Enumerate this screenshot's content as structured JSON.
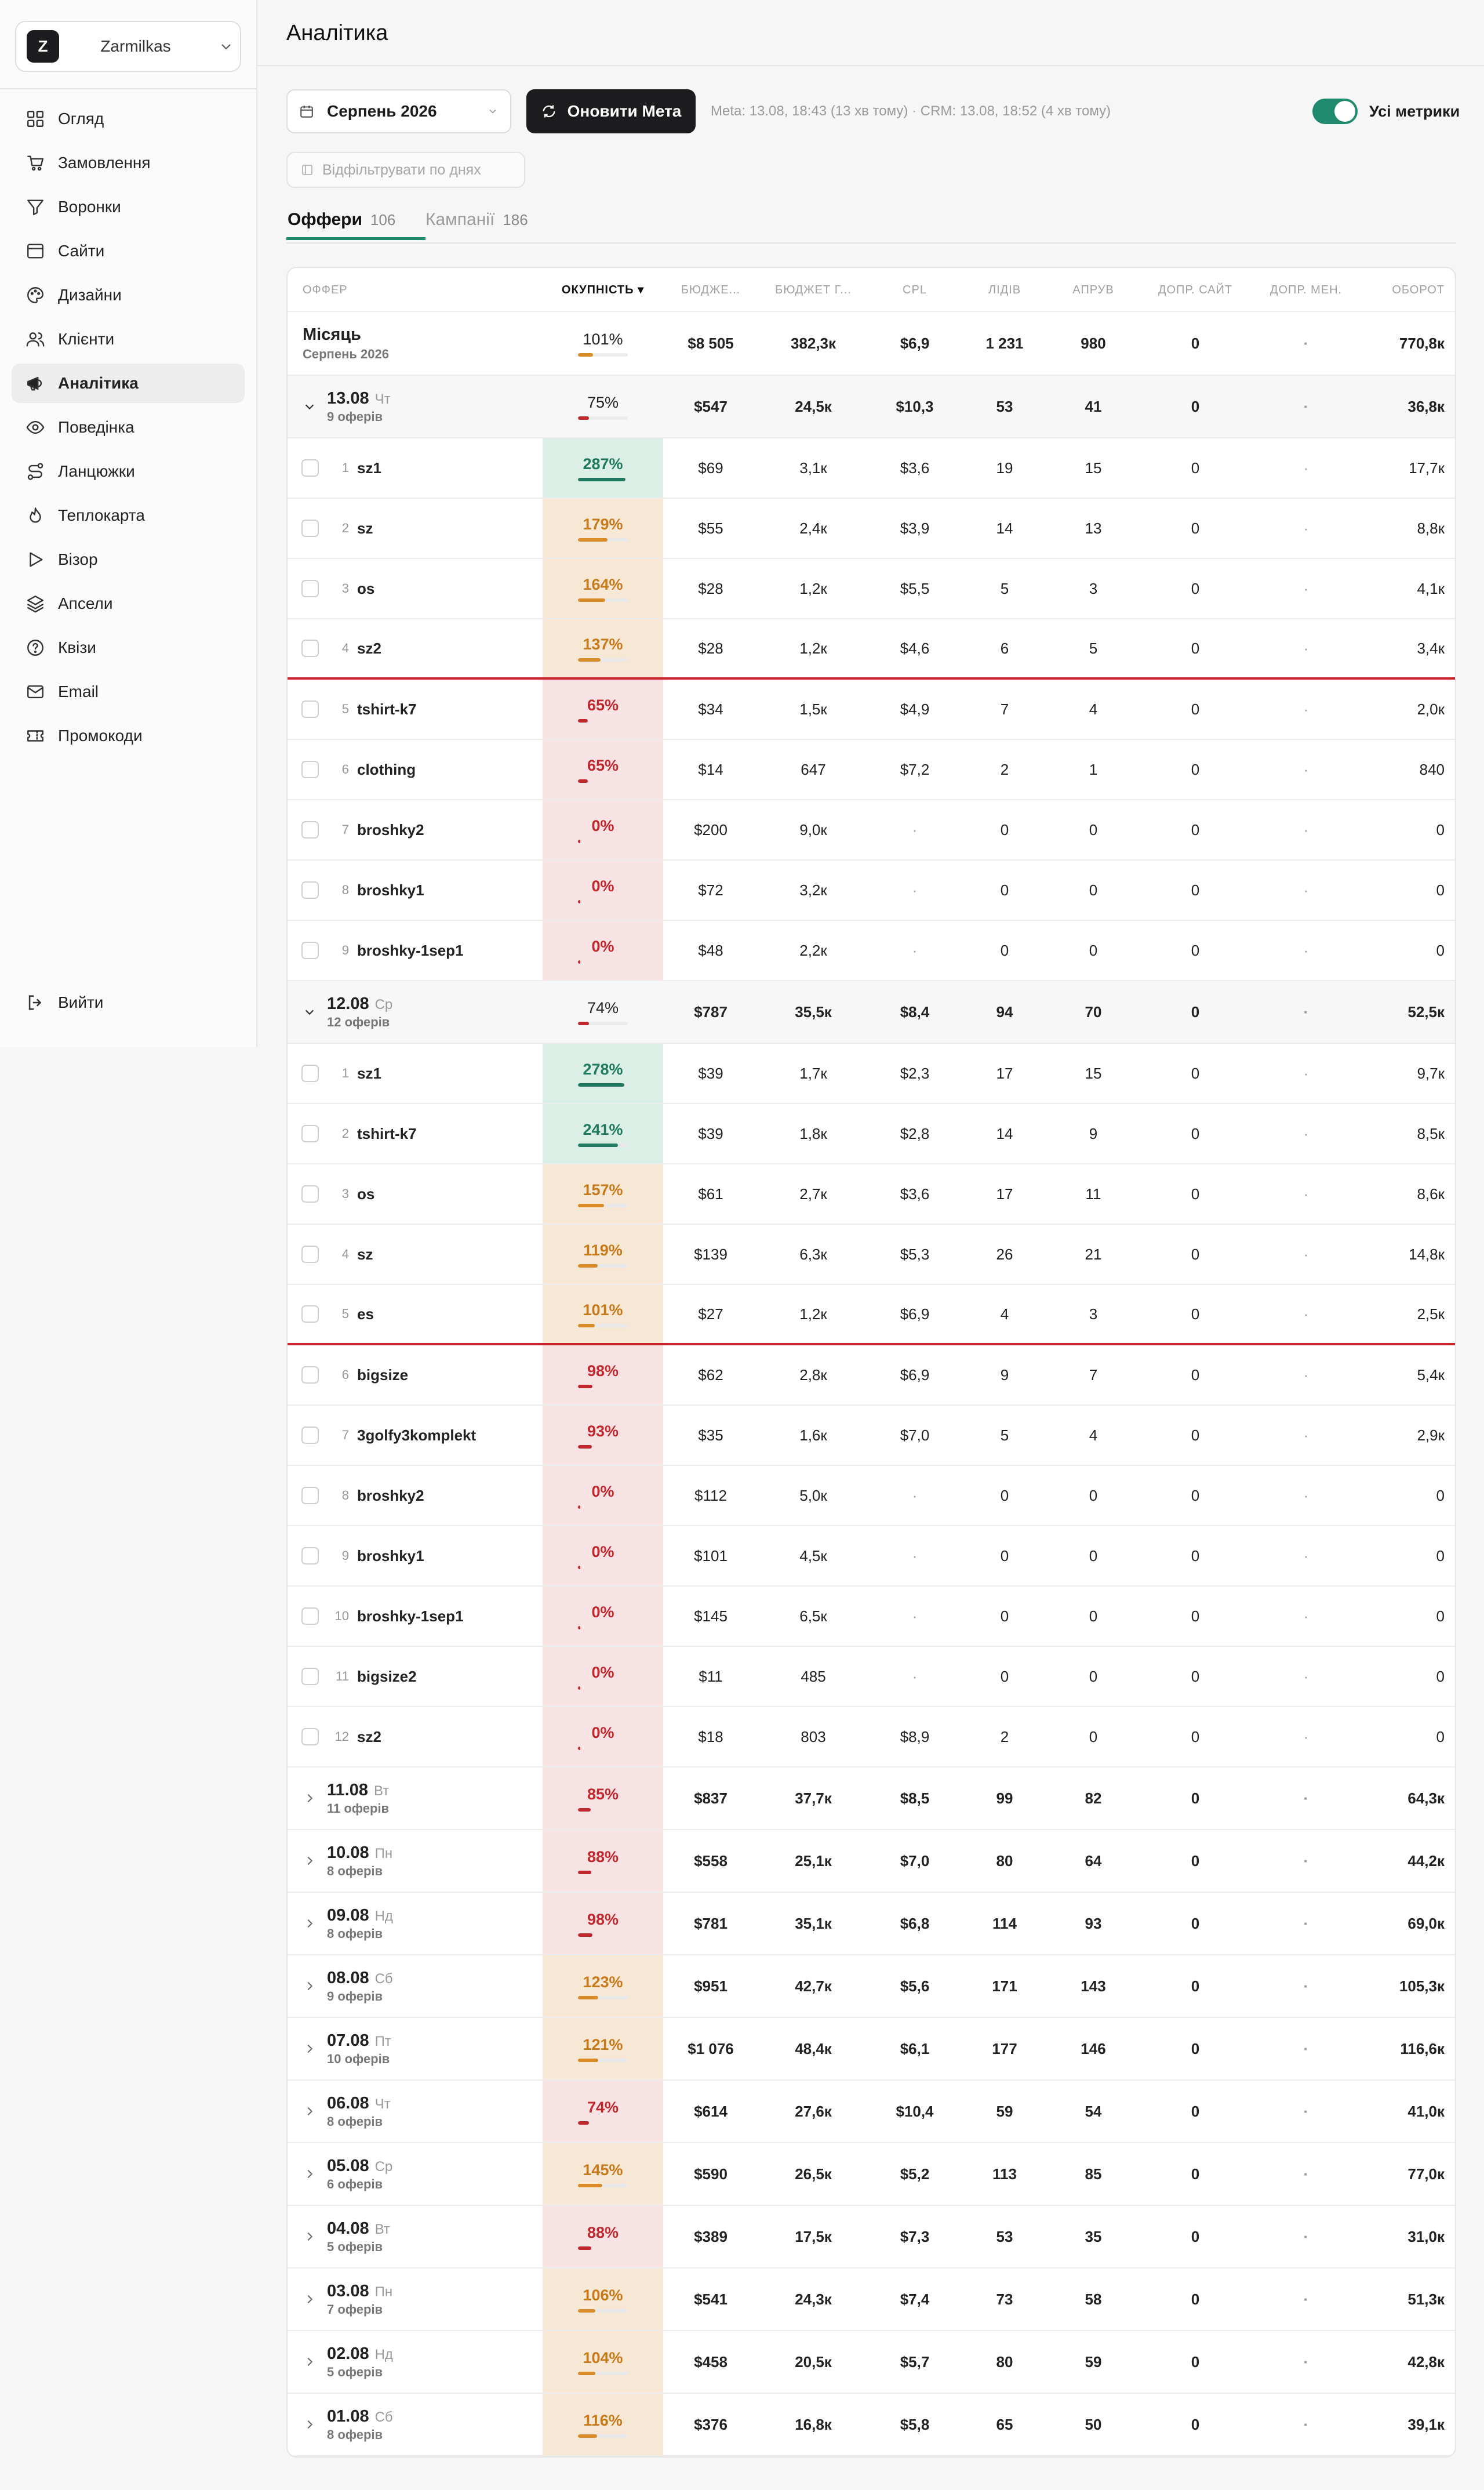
{
  "workspace": {
    "initial": "Z",
    "name": "Zarmilkas"
  },
  "nav": [
    {
      "label": "Огляд",
      "icon": "grid-icon"
    },
    {
      "label": "Замовлення",
      "icon": "cart-icon"
    },
    {
      "label": "Воронки",
      "icon": "funnel-icon"
    },
    {
      "label": "Сайти",
      "icon": "browser-icon"
    },
    {
      "label": "Дизайни",
      "icon": "palette-icon"
    },
    {
      "label": "Клієнти",
      "icon": "users-icon"
    },
    {
      "label": "Аналітика",
      "icon": "megaphone-icon",
      "active": true
    },
    {
      "label": "Поведінка",
      "icon": "eye-icon"
    },
    {
      "label": "Ланцюжки",
      "icon": "route-icon"
    },
    {
      "label": "Теплокарта",
      "icon": "flame-icon"
    },
    {
      "label": "Візор",
      "icon": "play-icon"
    },
    {
      "label": "Апсели",
      "icon": "layers-icon"
    },
    {
      "label": "Квізи",
      "icon": "help-circle-icon"
    },
    {
      "label": "Email",
      "icon": "mail-icon"
    },
    {
      "label": "Промокоди",
      "icon": "ticket-icon"
    }
  ],
  "logout": "Вийти",
  "page_title": "Аналітика",
  "toolbar": {
    "month": "Серпень 2026",
    "refresh_label": "Оновити Мета",
    "sync_info": "Meta: 13.08, 18:43 (13 хв тому) · CRM: 13.08, 18:52 (4 хв тому)",
    "toggle_label": "Усі метрики",
    "toggle_on": true,
    "filter_label": "Відфільтрувати по днях"
  },
  "tabs": [
    {
      "label": "Оффери",
      "count": "106",
      "active": true
    },
    {
      "label": "Кампанії",
      "count": "186",
      "active": false
    }
  ],
  "columns": [
    "ОФФЕР",
    "ОКУПНІСТЬ ▾",
    "БЮДЖЕ...",
    "БЮДЖЕТ Г...",
    "CPL",
    "ЛІДІВ",
    "АПРУВ",
    "ДОПР. САЙТ",
    "ДОПР. МЕН.",
    "ОБОРОТ"
  ],
  "colors": {
    "good": "#1f7a5f",
    "mid": "#d98b27",
    "bad": "#c0282e",
    "accent": "#1f8a6e"
  },
  "rows": [
    {
      "type": "month",
      "title": "Місяць",
      "sub": "Серпень 2026",
      "okup": "101%",
      "okup_value": 101,
      "level": "neutral",
      "budget": "$8 505",
      "budget_h": "382,3к",
      "cpl": "$6,9",
      "leads": "1 231",
      "approve": "980",
      "dop_site": "0",
      "dop_men": "·",
      "turnover": "770,8к"
    },
    {
      "type": "day",
      "expanded": true,
      "date": "13.08",
      "dow": "Чт",
      "sub": "9 оферів",
      "okup": "75%",
      "okup_value": 75,
      "level": "neutral",
      "budget": "$547",
      "budget_h": "24,5к",
      "cpl": "$10,3",
      "leads": "53",
      "approve": "41",
      "dop_site": "0",
      "dop_men": "·",
      "turnover": "36,8к"
    },
    {
      "type": "offer",
      "rank": "1",
      "name": "sz1",
      "okup": "287%",
      "okup_value": 287,
      "level": "good",
      "budget": "$69",
      "budget_h": "3,1к",
      "cpl": "$3,6",
      "leads": "19",
      "approve": "15",
      "dop_site": "0",
      "dop_men": "·",
      "turnover": "17,7к"
    },
    {
      "type": "offer",
      "rank": "2",
      "name": "sz",
      "okup": "179%",
      "okup_value": 179,
      "level": "mid",
      "budget": "$55",
      "budget_h": "2,4к",
      "cpl": "$3,9",
      "leads": "14",
      "approve": "13",
      "dop_site": "0",
      "dop_men": "·",
      "turnover": "8,8к"
    },
    {
      "type": "offer",
      "rank": "3",
      "name": "os",
      "okup": "164%",
      "okup_value": 164,
      "level": "mid",
      "budget": "$28",
      "budget_h": "1,2к",
      "cpl": "$5,5",
      "leads": "5",
      "approve": "3",
      "dop_site": "0",
      "dop_men": "·",
      "turnover": "4,1к"
    },
    {
      "type": "offer",
      "rank": "4",
      "name": "sz2",
      "okup": "137%",
      "okup_value": 137,
      "level": "mid",
      "budget": "$28",
      "budget_h": "1,2к",
      "cpl": "$4,6",
      "leads": "6",
      "approve": "5",
      "dop_site": "0",
      "dop_men": "·",
      "turnover": "3,4к",
      "cutline": true
    },
    {
      "type": "offer",
      "rank": "5",
      "name": "tshirt-k7",
      "okup": "65%",
      "okup_value": 65,
      "level": "bad",
      "budget": "$34",
      "budget_h": "1,5к",
      "cpl": "$4,9",
      "leads": "7",
      "approve": "4",
      "dop_site": "0",
      "dop_men": "·",
      "turnover": "2,0к"
    },
    {
      "type": "offer",
      "rank": "6",
      "name": "clothing",
      "okup": "65%",
      "okup_value": 65,
      "level": "bad",
      "budget": "$14",
      "budget_h": "647",
      "cpl": "$7,2",
      "leads": "2",
      "approve": "1",
      "dop_site": "0",
      "dop_men": "·",
      "turnover": "840"
    },
    {
      "type": "offer",
      "rank": "7",
      "name": "broshky2",
      "okup": "0%",
      "okup_value": 0,
      "level": "bad",
      "budget": "$200",
      "budget_h": "9,0к",
      "cpl": "·",
      "leads": "0",
      "approve": "0",
      "dop_site": "0",
      "dop_men": "·",
      "turnover": "0"
    },
    {
      "type": "offer",
      "rank": "8",
      "name": "broshky1",
      "okup": "0%",
      "okup_value": 0,
      "level": "bad",
      "budget": "$72",
      "budget_h": "3,2к",
      "cpl": "·",
      "leads": "0",
      "approve": "0",
      "dop_site": "0",
      "dop_men": "·",
      "turnover": "0"
    },
    {
      "type": "offer",
      "rank": "9",
      "name": "broshky-1sep1",
      "okup": "0%",
      "okup_value": 0,
      "level": "bad",
      "budget": "$48",
      "budget_h": "2,2к",
      "cpl": "·",
      "leads": "0",
      "approve": "0",
      "dop_site": "0",
      "dop_men": "·",
      "turnover": "0"
    },
    {
      "type": "day",
      "expanded": true,
      "date": "12.08",
      "dow": "Ср",
      "sub": "12 оферів",
      "okup": "74%",
      "okup_value": 74,
      "level": "neutral",
      "budget": "$787",
      "budget_h": "35,5к",
      "cpl": "$8,4",
      "leads": "94",
      "approve": "70",
      "dop_site": "0",
      "dop_men": "·",
      "turnover": "52,5к"
    },
    {
      "type": "offer",
      "rank": "1",
      "name": "sz1",
      "okup": "278%",
      "okup_value": 278,
      "level": "good",
      "budget": "$39",
      "budget_h": "1,7к",
      "cpl": "$2,3",
      "leads": "17",
      "approve": "15",
      "dop_site": "0",
      "dop_men": "·",
      "turnover": "9,7к"
    },
    {
      "type": "offer",
      "rank": "2",
      "name": "tshirt-k7",
      "okup": "241%",
      "okup_value": 241,
      "level": "good",
      "budget": "$39",
      "budget_h": "1,8к",
      "cpl": "$2,8",
      "leads": "14",
      "approve": "9",
      "dop_site": "0",
      "dop_men": "·",
      "turnover": "8,5к"
    },
    {
      "type": "offer",
      "rank": "3",
      "name": "os",
      "okup": "157%",
      "okup_value": 157,
      "level": "mid",
      "budget": "$61",
      "budget_h": "2,7к",
      "cpl": "$3,6",
      "leads": "17",
      "approve": "11",
      "dop_site": "0",
      "dop_men": "·",
      "turnover": "8,6к"
    },
    {
      "type": "offer",
      "rank": "4",
      "name": "sz",
      "okup": "119%",
      "okup_value": 119,
      "level": "mid",
      "budget": "$139",
      "budget_h": "6,3к",
      "cpl": "$5,3",
      "leads": "26",
      "approve": "21",
      "dop_site": "0",
      "dop_men": "·",
      "turnover": "14,8к"
    },
    {
      "type": "offer",
      "rank": "5",
      "name": "es",
      "okup": "101%",
      "okup_value": 101,
      "level": "mid",
      "budget": "$27",
      "budget_h": "1,2к",
      "cpl": "$6,9",
      "leads": "4",
      "approve": "3",
      "dop_site": "0",
      "dop_men": "·",
      "turnover": "2,5к",
      "cutline": true
    },
    {
      "type": "offer",
      "rank": "6",
      "name": "bigsize",
      "okup": "98%",
      "okup_value": 98,
      "level": "bad",
      "budget": "$62",
      "budget_h": "2,8к",
      "cpl": "$6,9",
      "leads": "9",
      "approve": "7",
      "dop_site": "0",
      "dop_men": "·",
      "turnover": "5,4к"
    },
    {
      "type": "offer",
      "rank": "7",
      "name": "3golfy3komplekt",
      "okup": "93%",
      "okup_value": 93,
      "level": "bad",
      "budget": "$35",
      "budget_h": "1,6к",
      "cpl": "$7,0",
      "leads": "5",
      "approve": "4",
      "dop_site": "0",
      "dop_men": "·",
      "turnover": "2,9к"
    },
    {
      "type": "offer",
      "rank": "8",
      "name": "broshky2",
      "okup": "0%",
      "okup_value": 0,
      "level": "bad",
      "budget": "$112",
      "budget_h": "5,0к",
      "cpl": "·",
      "leads": "0",
      "approve": "0",
      "dop_site": "0",
      "dop_men": "·",
      "turnover": "0"
    },
    {
      "type": "offer",
      "rank": "9",
      "name": "broshky1",
      "okup": "0%",
      "okup_value": 0,
      "level": "bad",
      "budget": "$101",
      "budget_h": "4,5к",
      "cpl": "·",
      "leads": "0",
      "approve": "0",
      "dop_site": "0",
      "dop_men": "·",
      "turnover": "0"
    },
    {
      "type": "offer",
      "rank": "10",
      "name": "broshky-1sep1",
      "okup": "0%",
      "okup_value": 0,
      "level": "bad",
      "budget": "$145",
      "budget_h": "6,5к",
      "cpl": "·",
      "leads": "0",
      "approve": "0",
      "dop_site": "0",
      "dop_men": "·",
      "turnover": "0"
    },
    {
      "type": "offer",
      "rank": "11",
      "name": "bigsize2",
      "okup": "0%",
      "okup_value": 0,
      "level": "bad",
      "budget": "$11",
      "budget_h": "485",
      "cpl": "·",
      "leads": "0",
      "approve": "0",
      "dop_site": "0",
      "dop_men": "·",
      "turnover": "0"
    },
    {
      "type": "offer",
      "rank": "12",
      "name": "sz2",
      "okup": "0%",
      "okup_value": 0,
      "level": "bad",
      "budget": "$18",
      "budget_h": "803",
      "cpl": "$8,9",
      "leads": "2",
      "approve": "0",
      "dop_site": "0",
      "dop_men": "·",
      "turnover": "0"
    },
    {
      "type": "day",
      "expanded": false,
      "date": "11.08",
      "dow": "Вт",
      "sub": "11 оферів",
      "okup": "85%",
      "okup_value": 85,
      "level": "bad",
      "budget": "$837",
      "budget_h": "37,7к",
      "cpl": "$8,5",
      "leads": "99",
      "approve": "82",
      "dop_site": "0",
      "dop_men": "·",
      "turnover": "64,3к"
    },
    {
      "type": "day",
      "expanded": false,
      "date": "10.08",
      "dow": "Пн",
      "sub": "8 оферів",
      "okup": "88%",
      "okup_value": 88,
      "level": "bad",
      "budget": "$558",
      "budget_h": "25,1к",
      "cpl": "$7,0",
      "leads": "80",
      "approve": "64",
      "dop_site": "0",
      "dop_men": "·",
      "turnover": "44,2к"
    },
    {
      "type": "day",
      "expanded": false,
      "date": "09.08",
      "dow": "Нд",
      "sub": "8 оферів",
      "okup": "98%",
      "okup_value": 98,
      "level": "bad",
      "budget": "$781",
      "budget_h": "35,1к",
      "cpl": "$6,8",
      "leads": "114",
      "approve": "93",
      "dop_site": "0",
      "dop_men": "·",
      "turnover": "69,0к"
    },
    {
      "type": "day",
      "expanded": false,
      "date": "08.08",
      "dow": "Сб",
      "sub": "9 оферів",
      "okup": "123%",
      "okup_value": 123,
      "level": "mid",
      "budget": "$951",
      "budget_h": "42,7к",
      "cpl": "$5,6",
      "leads": "171",
      "approve": "143",
      "dop_site": "0",
      "dop_men": "·",
      "turnover": "105,3к"
    },
    {
      "type": "day",
      "expanded": false,
      "date": "07.08",
      "dow": "Пт",
      "sub": "10 оферів",
      "okup": "121%",
      "okup_value": 121,
      "level": "mid",
      "budget": "$1 076",
      "budget_h": "48,4к",
      "cpl": "$6,1",
      "leads": "177",
      "approve": "146",
      "dop_site": "0",
      "dop_men": "·",
      "turnover": "116,6к"
    },
    {
      "type": "day",
      "expanded": false,
      "date": "06.08",
      "dow": "Чт",
      "sub": "8 оферів",
      "okup": "74%",
      "okup_value": 74,
      "level": "bad",
      "budget": "$614",
      "budget_h": "27,6к",
      "cpl": "$10,4",
      "leads": "59",
      "approve": "54",
      "dop_site": "0",
      "dop_men": "·",
      "turnover": "41,0к"
    },
    {
      "type": "day",
      "expanded": false,
      "date": "05.08",
      "dow": "Ср",
      "sub": "6 оферів",
      "okup": "145%",
      "okup_value": 145,
      "level": "mid",
      "budget": "$590",
      "budget_h": "26,5к",
      "cpl": "$5,2",
      "leads": "113",
      "approve": "85",
      "dop_site": "0",
      "dop_men": "·",
      "turnover": "77,0к"
    },
    {
      "type": "day",
      "expanded": false,
      "date": "04.08",
      "dow": "Вт",
      "sub": "5 оферів",
      "okup": "88%",
      "okup_value": 88,
      "level": "bad",
      "budget": "$389",
      "budget_h": "17,5к",
      "cpl": "$7,3",
      "leads": "53",
      "approve": "35",
      "dop_site": "0",
      "dop_men": "·",
      "turnover": "31,0к"
    },
    {
      "type": "day",
      "expanded": false,
      "date": "03.08",
      "dow": "Пн",
      "sub": "7 оферів",
      "okup": "106%",
      "okup_value": 106,
      "level": "mid",
      "budget": "$541",
      "budget_h": "24,3к",
      "cpl": "$7,4",
      "leads": "73",
      "approve": "58",
      "dop_site": "0",
      "dop_men": "·",
      "turnover": "51,3к"
    },
    {
      "type": "day",
      "expanded": false,
      "date": "02.08",
      "dow": "Нд",
      "sub": "5 оферів",
      "okup": "104%",
      "okup_value": 104,
      "level": "mid",
      "budget": "$458",
      "budget_h": "20,5к",
      "cpl": "$5,7",
      "leads": "80",
      "approve": "59",
      "dop_site": "0",
      "dop_men": "·",
      "turnover": "42,8к"
    },
    {
      "type": "day",
      "expanded": false,
      "date": "01.08",
      "dow": "Сб",
      "sub": "8 оферів",
      "okup": "116%",
      "okup_value": 116,
      "level": "mid",
      "budget": "$376",
      "budget_h": "16,8к",
      "cpl": "$5,8",
      "leads": "65",
      "approve": "50",
      "dop_site": "0",
      "dop_men": "·",
      "turnover": "39,1к"
    }
  ]
}
